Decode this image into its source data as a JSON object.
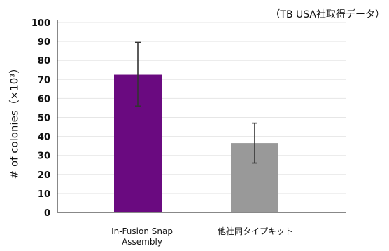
{
  "chart_data": {
    "type": "bar",
    "note": "（TB USA社取得データ）",
    "ylabel": "# of colonies（×10³）",
    "categories": [
      "In-Fusion Snap Assembly",
      "他社同タイプキット"
    ],
    "values": [
      72.5,
      36.5
    ],
    "error": [
      [
        56,
        89.5
      ],
      [
        26,
        47
      ]
    ],
    "bar_colors": [
      "#6a0a80",
      "#999999"
    ],
    "ylim": [
      0,
      100
    ],
    "yticks": [
      "0",
      "10",
      "20",
      "30",
      "40",
      "50",
      "60",
      "70",
      "80",
      "90",
      "100"
    ],
    "grid": true
  }
}
